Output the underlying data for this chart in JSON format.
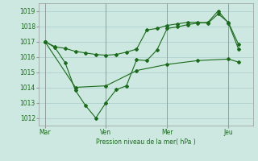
{
  "background_color": "#cce8e0",
  "grid_color": "#aacccc",
  "line_color": "#1a6b1a",
  "text_color": "#1a6b1a",
  "xlabel_text": "Pression niveau de la mer( hPa )",
  "ylim": [
    1011.5,
    1019.5
  ],
  "yticks": [
    1012,
    1013,
    1014,
    1015,
    1016,
    1017,
    1018,
    1019
  ],
  "xtick_labels": [
    "Mar",
    "Ven",
    "Mer",
    "Jeu"
  ],
  "xtick_positions": [
    0,
    3,
    6,
    9
  ],
  "xlim": [
    -0.3,
    10.2
  ],
  "series1_x": [
    0,
    0.5,
    1.0,
    1.5,
    2.0,
    2.5,
    3.0,
    3.5,
    4.0,
    4.5,
    5.0,
    5.5,
    6.0,
    6.5,
    7.0,
    7.5,
    8.0,
    8.5,
    9.0,
    9.5
  ],
  "series1_y": [
    1017.0,
    1016.65,
    1016.55,
    1016.35,
    1016.25,
    1016.15,
    1016.1,
    1016.15,
    1016.3,
    1016.5,
    1017.75,
    1017.85,
    1018.05,
    1018.15,
    1018.25,
    1018.25,
    1018.2,
    1018.8,
    1018.25,
    1016.8
  ],
  "series2_x": [
    0,
    0.5,
    1.0,
    1.5,
    2.0,
    2.5,
    3.0,
    3.5,
    4.0,
    4.5,
    5.0,
    5.5,
    6.0,
    6.5,
    7.0,
    7.5,
    8.0,
    8.5,
    9.0,
    9.5
  ],
  "series2_y": [
    1017.0,
    1016.6,
    1015.6,
    1013.8,
    1012.8,
    1012.0,
    1013.0,
    1013.85,
    1014.1,
    1015.8,
    1015.75,
    1016.45,
    1017.85,
    1017.95,
    1018.1,
    1018.2,
    1018.25,
    1019.0,
    1018.2,
    1016.5
  ],
  "series3_x": [
    0,
    1.5,
    3.0,
    4.5,
    6.0,
    7.5,
    9.0,
    9.5
  ],
  "series3_y": [
    1017.0,
    1014.0,
    1014.1,
    1015.1,
    1015.5,
    1015.75,
    1015.85,
    1015.65
  ],
  "marker_size": 2.0,
  "linewidth": 0.8
}
